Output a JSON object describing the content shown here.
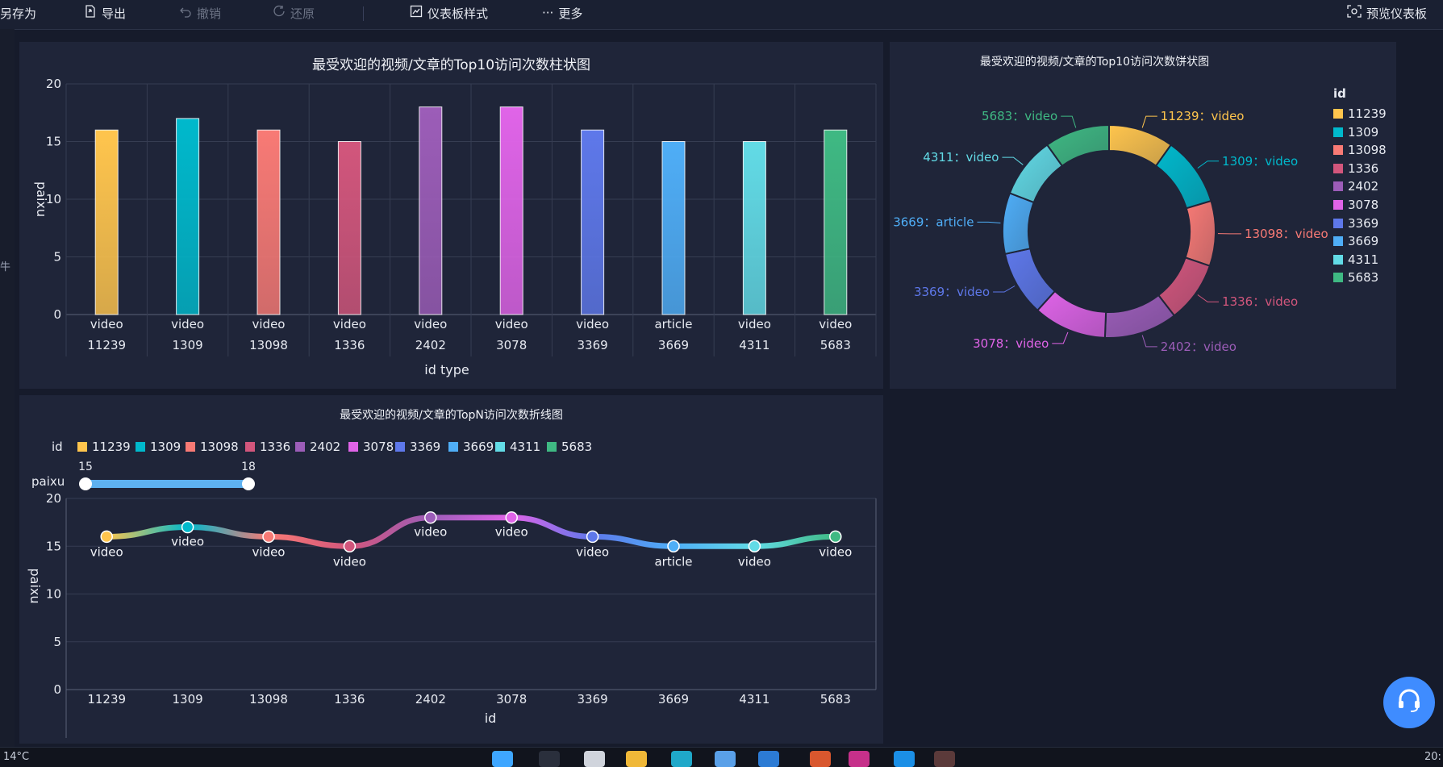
{
  "toolbar": {
    "items": [
      {
        "label": "另存为",
        "icon": "save-as-icon",
        "enabled": true
      },
      {
        "label": "导出",
        "icon": "export-icon",
        "enabled": true
      },
      {
        "label": "撤销",
        "icon": "undo-icon",
        "enabled": false
      },
      {
        "label": "还原",
        "icon": "redo-icon",
        "enabled": false
      },
      {
        "label": "仪表板样式",
        "icon": "dashboard-style-icon",
        "enabled": true
      },
      {
        "label": "更多",
        "icon": "more-icon",
        "enabled": true
      },
      {
        "label": "预览仪表板",
        "icon": "preview-icon",
        "enabled": true
      }
    ]
  },
  "left_strip": {
    "text": "牛"
  },
  "colors": {
    "11239": "#ffc54d",
    "1309": "#00b9cc",
    "13098": "#f87a75",
    "1336": "#d2567c",
    "2402": "#9c5db8",
    "3078": "#e064e8",
    "3369": "#5e78ea",
    "3669": "#4faef7",
    "4311": "#62dbe6",
    "5683": "#3fb983"
  },
  "taskbar": {
    "weather": "14°C",
    "time": "20:"
  },
  "chart_data": [
    {
      "id": "bar",
      "type": "bar",
      "title": "最受欢迎的视频/文章的Top10访问次数柱状图",
      "categories": [
        "11239",
        "1309",
        "13098",
        "1336",
        "2402",
        "3078",
        "3369",
        "3669",
        "4311",
        "5683"
      ],
      "types": [
        "video",
        "video",
        "video",
        "video",
        "video",
        "video",
        "video",
        "article",
        "video",
        "video"
      ],
      "values": [
        16,
        17,
        16,
        15,
        18,
        18,
        16,
        15,
        15,
        16
      ],
      "xlabel": "id  type",
      "ylabel": "paixu",
      "yticks": [
        "20",
        "15",
        "10",
        "5",
        "0"
      ],
      "ylim": [
        0,
        20
      ],
      "grid": true
    },
    {
      "id": "pie",
      "type": "pie",
      "title": "最受欢迎的视频/文章的Top10访问次数饼状图",
      "legend_title": "id",
      "labels": [
        "11239",
        "1309",
        "13098",
        "1336",
        "2402",
        "3078",
        "3369",
        "3669",
        "4311",
        "5683"
      ],
      "slice_labels": [
        "11239：video",
        "1309：video",
        "13098：video",
        "1336：video",
        "2402：video",
        "3078：video",
        "3369：video",
        "3669：article",
        "4311：video",
        "5683：video"
      ],
      "values": [
        16,
        17,
        16,
        15,
        18,
        18,
        16,
        15,
        15,
        16
      ],
      "legend": "right"
    },
    {
      "id": "line",
      "type": "line",
      "title": "最受欢迎的视频/文章的TopN访问次数折线图",
      "legend_title": "id",
      "legend_items": [
        "11239",
        "1309",
        "13098",
        "1336",
        "2402",
        "3078",
        "3369",
        "3669",
        "4311",
        "5683"
      ],
      "range_filter": {
        "label": "paixu",
        "min_label": "15",
        "max_label": "18",
        "min": 15,
        "max": 18
      },
      "categories": [
        "11239",
        "1309",
        "13098",
        "1336",
        "2402",
        "3078",
        "3369",
        "3669",
        "4311",
        "5683"
      ],
      "point_labels": [
        "video",
        "video",
        "video",
        "video",
        "video",
        "video",
        "video",
        "article",
        "video",
        "video"
      ],
      "values": [
        16,
        17,
        16,
        15,
        18,
        18,
        16,
        15,
        15,
        16
      ],
      "xlabel": "id",
      "ylabel": "paixu",
      "yticks": [
        "20",
        "15",
        "10",
        "5",
        "0"
      ],
      "ylim": [
        0,
        20
      ],
      "grid": true
    }
  ]
}
